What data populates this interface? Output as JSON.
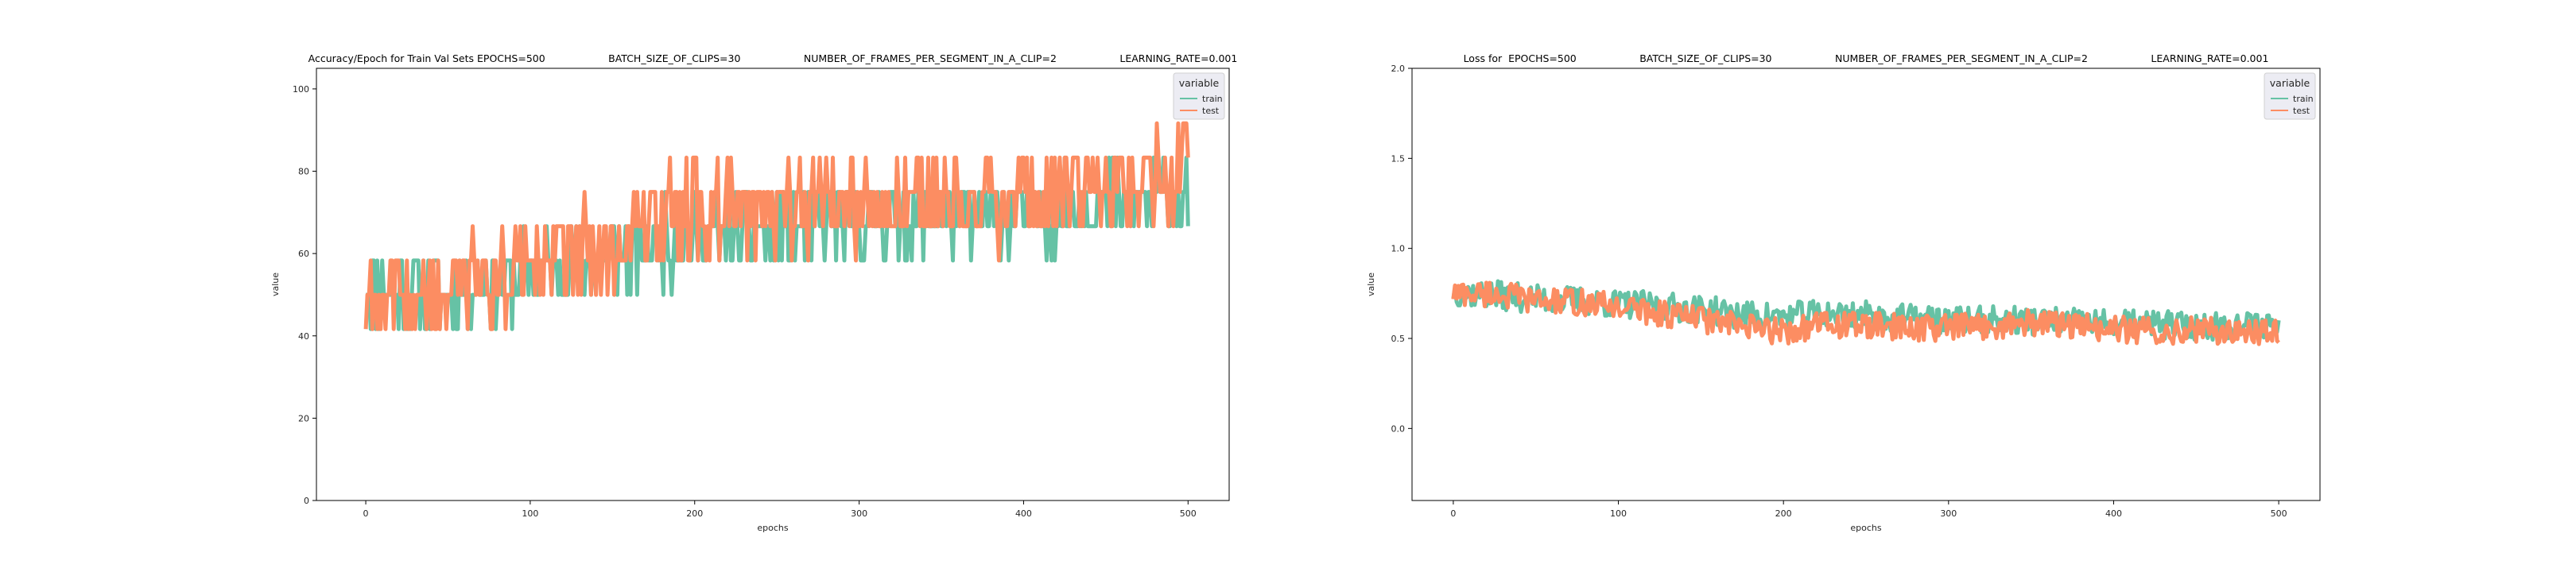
{
  "chart_data": [
    {
      "type": "line",
      "title": "Accuracy/Epoch for Train Val Sets EPOCHS=500                    BATCH_SIZE_OF_CLIPS=30                    NUMBER_OF_FRAMES_PER_SEGMENT_IN_A_CLIP=2                    LEARNING_RATE=0.001",
      "xlabel": "epochs",
      "ylabel": "value",
      "xlim": [
        -30,
        525
      ],
      "ylim": [
        0,
        105
      ],
      "xticks": [
        "0",
        "100",
        "200",
        "300",
        "400",
        "500"
      ],
      "yticks": [
        "0",
        "20",
        "40",
        "60",
        "80",
        "100"
      ],
      "xtick_values": [
        0,
        100,
        200,
        300,
        400,
        500
      ],
      "ytick_values": [
        0,
        20,
        40,
        60,
        80,
        100
      ],
      "grid": false,
      "legend": {
        "title": "variable",
        "placement": "top-right"
      },
      "series": [
        {
          "name": "train",
          "color": "#66c2a5",
          "x": [
            0,
            25,
            50,
            75,
            100,
            125,
            150,
            175,
            200,
            225,
            250,
            275,
            300,
            325,
            350,
            375,
            400,
            425,
            450,
            475,
            500
          ],
          "values": [
            52,
            50,
            51,
            53,
            55,
            57,
            59,
            62,
            63,
            64,
            66,
            67,
            67,
            68,
            69,
            69,
            70,
            71,
            72,
            73,
            74
          ]
        },
        {
          "name": "test",
          "color": "#fc8d62",
          "x": [
            0,
            25,
            50,
            75,
            100,
            125,
            150,
            175,
            200,
            225,
            250,
            275,
            300,
            325,
            350,
            375,
            400,
            425,
            450,
            475,
            500
          ],
          "values": [
            50,
            52,
            50,
            54,
            58,
            60,
            61,
            68,
            70,
            70,
            71,
            72,
            72,
            72,
            73,
            72,
            73,
            74,
            75,
            76,
            84
          ]
        }
      ]
    },
    {
      "type": "line",
      "title": "Loss for  EPOCHS=500                    BATCH_SIZE_OF_CLIPS=30                    NUMBER_OF_FRAMES_PER_SEGMENT_IN_A_CLIP=2                    LEARNING_RATE=0.001",
      "xlabel": "epochs",
      "ylabel": "value",
      "xlim": [
        -25,
        525
      ],
      "ylim": [
        -0.4,
        2.0
      ],
      "xticks": [
        "0",
        "100",
        "200",
        "300",
        "400",
        "500"
      ],
      "yticks": [
        "0.0",
        "0.5",
        "1.0",
        "1.5",
        "2.0"
      ],
      "xtick_values": [
        0,
        100,
        200,
        300,
        400,
        500
      ],
      "ytick_values": [
        0,
        0.5,
        1.0,
        1.5,
        2.0
      ],
      "grid": false,
      "legend": {
        "title": "variable",
        "placement": "top-right"
      },
      "series": [
        {
          "name": "train",
          "color": "#66c2a5",
          "x": [
            0,
            25,
            50,
            75,
            100,
            125,
            150,
            175,
            200,
            225,
            250,
            275,
            300,
            325,
            350,
            375,
            400,
            425,
            450,
            475,
            500
          ],
          "values": [
            0.76,
            0.74,
            0.72,
            0.71,
            0.69,
            0.68,
            0.66,
            0.63,
            0.62,
            0.64,
            0.63,
            0.61,
            0.6,
            0.6,
            0.6,
            0.59,
            0.58,
            0.58,
            0.57,
            0.57,
            0.58
          ]
        },
        {
          "name": "test",
          "color": "#fc8d62",
          "x": [
            0,
            25,
            50,
            75,
            100,
            125,
            150,
            175,
            200,
            225,
            250,
            275,
            300,
            325,
            350,
            375,
            400,
            425,
            450,
            475,
            500
          ],
          "values": [
            0.75,
            0.75,
            0.71,
            0.7,
            0.68,
            0.64,
            0.61,
            0.56,
            0.54,
            0.58,
            0.57,
            0.56,
            0.56,
            0.57,
            0.59,
            0.57,
            0.55,
            0.54,
            0.55,
            0.53,
            0.55
          ]
        }
      ]
    }
  ]
}
